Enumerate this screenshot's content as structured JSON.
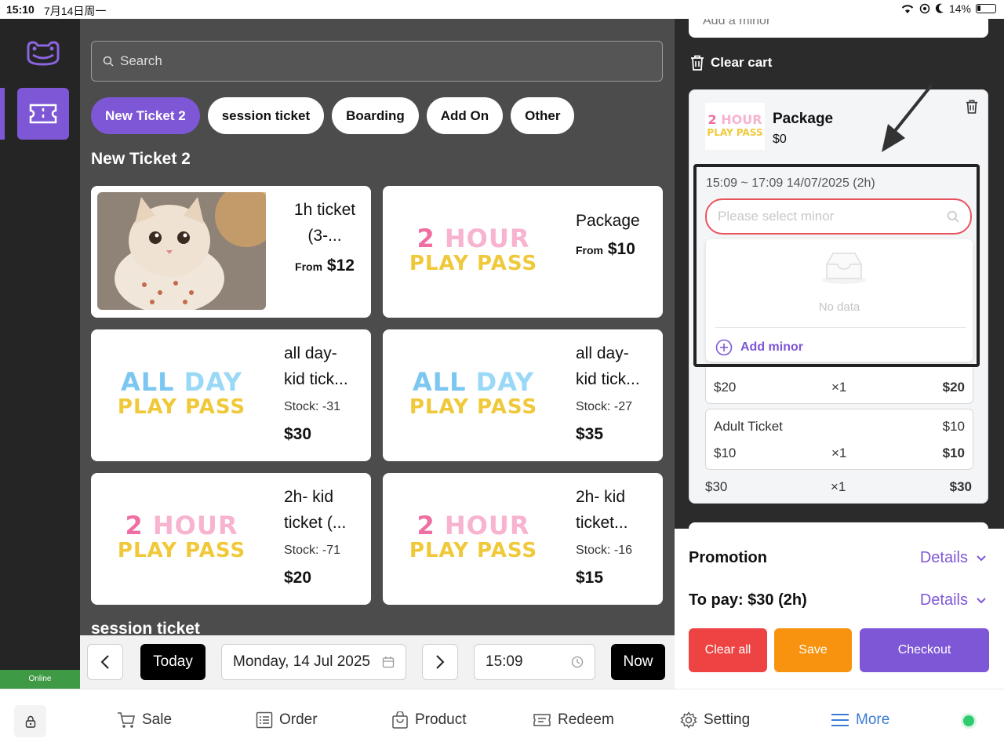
{
  "status_bar": {
    "time": "15:10",
    "date": "7月14日周一",
    "battery": "14%"
  },
  "rail": {
    "online_label": "Online"
  },
  "search": {
    "placeholder": "Search"
  },
  "categories": [
    {
      "label": "New Ticket 2",
      "active": true
    },
    {
      "label": "session ticket",
      "active": false
    },
    {
      "label": "Boarding",
      "active": false
    },
    {
      "label": "Add On",
      "active": false
    },
    {
      "label": "Other",
      "active": false
    }
  ],
  "section": {
    "title": "New Ticket 2",
    "next_title": "session ticket"
  },
  "products": [
    {
      "name_1": "1h ticket",
      "name_2": "(3-...",
      "from": "From",
      "price": "$12"
    },
    {
      "name_1": "Package",
      "from": "From",
      "price": "$10",
      "art_1a": "2",
      "art_1b": "HOUR",
      "art_2": "PLAY PASS"
    },
    {
      "name_1": "all day-",
      "name_2": "kid tick...",
      "stock_label": "Stock:",
      "stock": "-31",
      "price": "$30",
      "art_1a": "ALL",
      "art_1b": "DAY",
      "art_2": "PLAY PASS"
    },
    {
      "name_1": "all day-",
      "name_2": "kid tick...",
      "stock_label": "Stock:",
      "stock": "-27",
      "price": "$35",
      "art_1a": "ALL",
      "art_1b": "DAY",
      "art_2": "PLAY PASS"
    },
    {
      "name_1": "2h- kid",
      "name_2": "ticket (...",
      "stock_label": "Stock:",
      "stock": "-71",
      "price": "$20",
      "art_1a": "2",
      "art_1b": "HOUR",
      "art_2": "PLAY PASS"
    },
    {
      "name_1": "2h- kid",
      "name_2": "ticket...",
      "stock_label": "Stock:",
      "stock": "-16",
      "price": "$15",
      "art_1a": "2",
      "art_1b": "HOUR",
      "art_2": "PLAY PASS"
    }
  ],
  "datebar": {
    "today": "Today",
    "date": "Monday, 14 Jul 2025",
    "time": "15:09",
    "now": "Now"
  },
  "cart": {
    "add_minor_top": "Add a minor",
    "clear_cart": "Clear cart",
    "package": {
      "name": "Package",
      "price": "$0",
      "art_1a": "2",
      "art_1b": "HOUR",
      "art_2": "PLAY PASS"
    },
    "session": "15:09 ~ 17:09 14/07/2025 (2h)",
    "select_placeholder": "Please select minor",
    "no_data": "No data",
    "add_minor": "Add minor",
    "lines": [
      {
        "unit": "$20",
        "qty": "×1",
        "total": "$20"
      },
      {
        "title": "Adult Ticket",
        "title_price": "$10",
        "unit": "$10",
        "qty": "×1",
        "total": "$10"
      }
    ],
    "footer": {
      "unit": "$30",
      "qty": "×1",
      "total": "$30"
    }
  },
  "summary": {
    "promotion": "Promotion",
    "to_pay": "To pay: $30 (2h)",
    "details": "Details",
    "clear_all": "Clear all",
    "save": "Save",
    "checkout": "Checkout"
  },
  "tabs": [
    {
      "label": "Sale",
      "icon": "cart-icon"
    },
    {
      "label": "Order",
      "icon": "list-icon"
    },
    {
      "label": "Product",
      "icon": "bag-icon"
    },
    {
      "label": "Redeem",
      "icon": "ticket-icon"
    },
    {
      "label": "Setting",
      "icon": "gear-icon"
    },
    {
      "label": "More",
      "icon": "menu-icon",
      "active": true
    }
  ],
  "colors": {
    "accent": "#7e57d6",
    "danger": "#ee4343",
    "save": "#f7930e",
    "online": "#3e9a45"
  }
}
